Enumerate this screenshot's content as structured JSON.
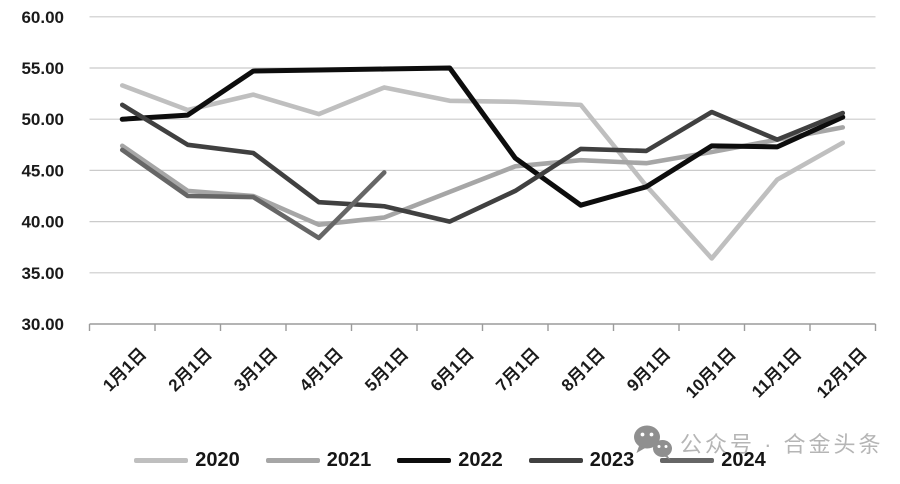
{
  "chart_data": {
    "type": "line",
    "title": "",
    "xlabel": "",
    "ylabel": "",
    "x_categories": [
      "1月1日",
      "2月1日",
      "3月1日",
      "4月1日",
      "5月1日",
      "6月1日",
      "7月1日",
      "8月1日",
      "9月1日",
      "10月1日",
      "11月1日",
      "12月1日"
    ],
    "series": [
      {
        "name": "2020",
        "color": "#bfbfbf",
        "values": [
          53.3,
          50.9,
          52.4,
          50.5,
          53.1,
          51.8,
          51.7,
          51.4,
          43.5,
          36.4,
          44.1,
          47.7
        ]
      },
      {
        "name": "2021",
        "color": "#a6a6a6",
        "values": [
          47.4,
          43.0,
          42.5,
          39.7,
          40.4,
          42.9,
          45.4,
          46.0,
          45.7,
          46.8,
          48.0,
          49.2
        ]
      },
      {
        "name": "2022",
        "color": "#0d0d0d",
        "values": [
          50.0,
          50.4,
          54.7,
          54.8,
          54.9,
          55.0,
          46.2,
          41.6,
          43.4,
          47.4,
          47.3,
          50.2
        ]
      },
      {
        "name": "2023",
        "color": "#404040",
        "values": [
          51.4,
          47.5,
          46.7,
          41.9,
          41.5,
          40.0,
          43.0,
          47.1,
          46.9,
          50.7,
          48.0,
          50.6
        ]
      },
      {
        "name": "2024",
        "color": "#666666",
        "values": [
          47.0,
          42.5,
          42.4,
          38.4,
          44.8
        ]
      }
    ],
    "ylim": [
      30,
      60
    ],
    "yticks": [
      {
        "value": 60,
        "label": "60.00"
      },
      {
        "value": 55,
        "label": "55.00"
      },
      {
        "value": 50,
        "label": "50.00"
      },
      {
        "value": 45,
        "label": "45.00"
      },
      {
        "value": 40,
        "label": "40.00"
      },
      {
        "value": 35,
        "label": "35.00"
      },
      {
        "value": 30,
        "label": "30.00"
      }
    ],
    "grid": true,
    "legend_position": "bottom"
  },
  "watermark": {
    "icon": "wechat-icon",
    "text": "公众号 · 合金头条"
  }
}
